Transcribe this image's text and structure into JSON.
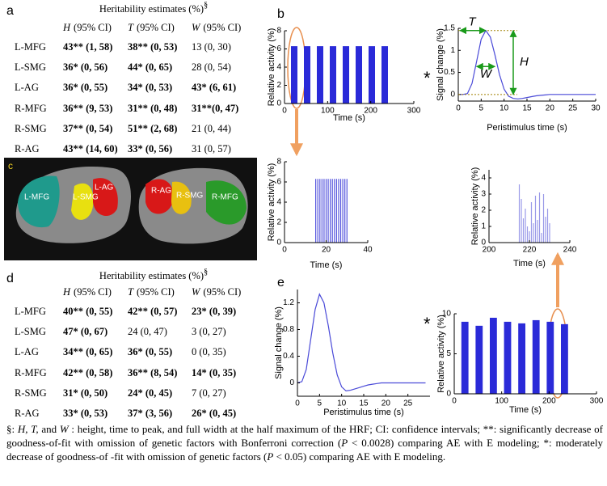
{
  "panel_labels": [
    "a",
    "b",
    "c",
    "d",
    "e"
  ],
  "annotations": {
    "T": "T",
    "W": "W",
    "H": "H",
    "star": "*"
  },
  "table_a": {
    "title": "Heritability estimates (%)",
    "title_mark": "§",
    "columns": [
      {
        "symbol": "H",
        "text": "(95% CI)"
      },
      {
        "symbol": "T",
        "text": "(95% CI)"
      },
      {
        "symbol": "W",
        "text": "(95% CI)"
      }
    ],
    "rows": [
      {
        "region": "L-MFG",
        "cells": [
          "43** (1, 58)",
          "38** (0, 53)",
          "13 (0, 30)"
        ],
        "bold": [
          true,
          true,
          false
        ]
      },
      {
        "region": "L-SMG",
        "cells": [
          "36* (0, 56)",
          "44* (0, 65)",
          "28 (0, 54)"
        ],
        "bold": [
          true,
          true,
          false
        ]
      },
      {
        "region": "L-AG",
        "cells": [
          "36* (0, 55)",
          "34* (0, 53)",
          "43* (6, 61)"
        ],
        "bold": [
          true,
          true,
          true
        ]
      },
      {
        "region": "R-MFG",
        "cells": [
          "36** (9, 53)",
          "31** (0, 48)",
          "31**(0, 47)"
        ],
        "bold": [
          true,
          true,
          true
        ]
      },
      {
        "region": "R-SMG",
        "cells": [
          "37** (0, 54)",
          "51** (2, 68)",
          "21 (0, 44)"
        ],
        "bold": [
          true,
          true,
          false
        ]
      },
      {
        "region": "R-AG",
        "cells": [
          "43** (14, 60)",
          "33* (0, 56)",
          "31 (0, 57)"
        ],
        "bold": [
          true,
          true,
          false
        ]
      }
    ]
  },
  "table_d": {
    "title": "Heritability estimates (%)",
    "title_mark": "§",
    "columns": [
      {
        "symbol": "H",
        "text": "(95% CI)"
      },
      {
        "symbol": "T",
        "text": "(95% CI)"
      },
      {
        "symbol": "W",
        "text": "(95% CI)"
      }
    ],
    "rows": [
      {
        "region": "L-MFG",
        "cells": [
          "40** (0, 55)",
          "42** (0, 57)",
          "23* (0, 39)"
        ],
        "bold": [
          true,
          true,
          true
        ]
      },
      {
        "region": "L-SMG",
        "cells": [
          "47* (0, 67)",
          "24 (0, 47)",
          "3 (0, 27)"
        ],
        "bold": [
          true,
          false,
          false
        ]
      },
      {
        "region": "L-AG",
        "cells": [
          "34** (0, 65)",
          "36* (0, 55)",
          "0 (0, 35)"
        ],
        "bold": [
          true,
          true,
          false
        ]
      },
      {
        "region": "R-MFG",
        "cells": [
          "42** (0, 58)",
          "36** (8, 54)",
          "14* (0, 35)"
        ],
        "bold": [
          true,
          true,
          true
        ]
      },
      {
        "region": "R-SMG",
        "cells": [
          "31* (0, 50)",
          "24* (0, 45)",
          "7 (0, 27)"
        ],
        "bold": [
          true,
          true,
          false
        ]
      },
      {
        "region": "R-AG",
        "cells": [
          "33* (0, 53)",
          "37* (3, 56)",
          "26* (0, 45)"
        ],
        "bold": [
          true,
          true,
          true
        ]
      }
    ]
  },
  "brain": {
    "labels": [
      "L-MFG",
      "L-SMG",
      "L-AG",
      "R-AG",
      "R-SMG",
      "R-MFG"
    ]
  },
  "chart_data": [
    {
      "type": "bar",
      "xlabel": "Time (s)",
      "ylabel": "Relative activity (%)",
      "color": "#2a2ad8",
      "x_start": [
        15,
        45,
        75,
        105,
        135,
        165,
        195,
        225
      ],
      "x_end": [
        30,
        60,
        90,
        120,
        150,
        180,
        210,
        240
      ],
      "values": [
        6.3,
        6.3,
        6.3,
        6.3,
        6.3,
        6.3,
        6.3,
        6.3
      ],
      "xlim": [
        0,
        300
      ],
      "xticks": [
        0,
        100,
        200,
        300
      ],
      "ylim": [
        0,
        8
      ],
      "yticks": [
        0,
        2,
        4,
        6,
        8
      ]
    },
    {
      "type": "line",
      "xlabel": "Peristimulus time (s)",
      "ylabel": "Signal change (%)",
      "color": "#4a4ad8",
      "x": [
        0,
        1,
        2,
        3,
        4,
        5,
        6,
        7,
        8,
        9,
        10,
        11,
        12,
        13,
        14,
        15,
        16,
        17,
        18,
        19,
        20,
        21,
        22,
        23,
        24,
        25,
        26,
        27,
        28,
        29,
        30
      ],
      "values": [
        0,
        0,
        0.02,
        0.25,
        0.75,
        1.25,
        1.45,
        1.3,
        0.9,
        0.45,
        0.12,
        -0.04,
        -0.09,
        -0.1,
        -0.09,
        -0.07,
        -0.05,
        -0.03,
        -0.02,
        -0.01,
        0,
        0,
        0,
        0,
        0,
        0,
        0,
        0,
        0,
        0,
        0
      ],
      "xlim": [
        0,
        30
      ],
      "xticks": [
        0,
        5,
        10,
        15,
        20,
        25,
        30
      ],
      "ylim": [
        -0.15,
        1.5
      ],
      "yticks": [
        0,
        0.5,
        1,
        1.5
      ]
    },
    {
      "type": "spike",
      "xlabel": "Time (s)",
      "ylabel": "Relative activity (%)",
      "color": "#5555dd",
      "x": [
        15,
        16,
        17,
        18,
        19,
        20,
        21,
        22,
        23,
        24,
        25,
        26,
        27,
        28,
        29,
        30
      ],
      "values": [
        6.3,
        6.3,
        6.3,
        6.3,
        6.3,
        6.3,
        6.3,
        6.3,
        6.3,
        6.3,
        6.3,
        6.3,
        6.3,
        6.3,
        6.3,
        6.3
      ],
      "xlim": [
        0,
        40
      ],
      "xticks": [
        0,
        20,
        40
      ],
      "ylim": [
        0,
        8
      ],
      "yticks": [
        0,
        2,
        4,
        6,
        8
      ]
    },
    {
      "type": "spike",
      "xlabel": "Time (s)",
      "ylabel": "Relative activity (%)",
      "color": "#9a9ae8",
      "x": [
        215,
        216,
        217,
        218,
        219,
        220,
        221,
        222,
        223,
        224,
        225,
        226,
        227,
        228,
        229,
        230
      ],
      "values": [
        3.6,
        2.7,
        1.5,
        2.1,
        1,
        0.7,
        2.5,
        1.2,
        2.9,
        1.4,
        3.1,
        0.6,
        3,
        1.6,
        2.1,
        1.2
      ],
      "xlim": [
        200,
        240
      ],
      "xticks": [
        200,
        220,
        240
      ],
      "ylim": [
        0,
        4.5
      ],
      "yticks": [
        0,
        1,
        2,
        3,
        4
      ]
    },
    {
      "type": "line",
      "xlabel": "Peristimulus time (s)",
      "ylabel": "Signal change (%)",
      "color": "#4a4ad8",
      "x": [
        0,
        1,
        2,
        3,
        4,
        5,
        6,
        7,
        8,
        9,
        10,
        11,
        12,
        13,
        14,
        15,
        16,
        17,
        18,
        19,
        20,
        21,
        22,
        23,
        24,
        25,
        26,
        27,
        28,
        29
      ],
      "values": [
        0,
        0.02,
        0.2,
        0.65,
        1.1,
        1.33,
        1.2,
        0.85,
        0.45,
        0.12,
        -0.06,
        -0.12,
        -0.11,
        -0.09,
        -0.07,
        -0.05,
        -0.03,
        -0.02,
        -0.01,
        0,
        0,
        0,
        0,
        0,
        0,
        0,
        0,
        0,
        0,
        0
      ],
      "xlim": [
        0,
        30
      ],
      "xticks": [
        0,
        5,
        10,
        15,
        20,
        25
      ],
      "ylim": [
        -0.2,
        1.4
      ],
      "yticks": [
        0,
        0.4,
        0.8,
        1.2
      ]
    },
    {
      "type": "bar",
      "xlabel": "Time (s)",
      "ylabel": "Relative activity (%)",
      "color": "#2a2ad8",
      "x_start": [
        15,
        45,
        75,
        105,
        135,
        165,
        195,
        225
      ],
      "x_end": [
        30,
        60,
        90,
        120,
        150,
        180,
        210,
        240
      ],
      "values": [
        9,
        8.5,
        9.5,
        9,
        8.8,
        9.2,
        9,
        8.7
      ],
      "xlim": [
        0,
        300
      ],
      "xticks": [
        0,
        100,
        200,
        300
      ],
      "ylim": [
        0,
        10
      ],
      "yticks": [
        0,
        5,
        10
      ]
    }
  ],
  "caption": [
    "§: ",
    "H, T,",
    " and ",
    "W",
    " : height, time to peak, and full width at the half maximum of the HRF; CI: confidence intervals; **: significantly decrease of goodness-of-fit with omission of genetic factors with Bonferroni correction (",
    "P",
    " < 0.0028) comparing AE with E modeling; *: moderately decrease of goodness-of -fit with omission of genetic factors (",
    "P",
    " < 0.05) comparing AE with E modeling."
  ]
}
